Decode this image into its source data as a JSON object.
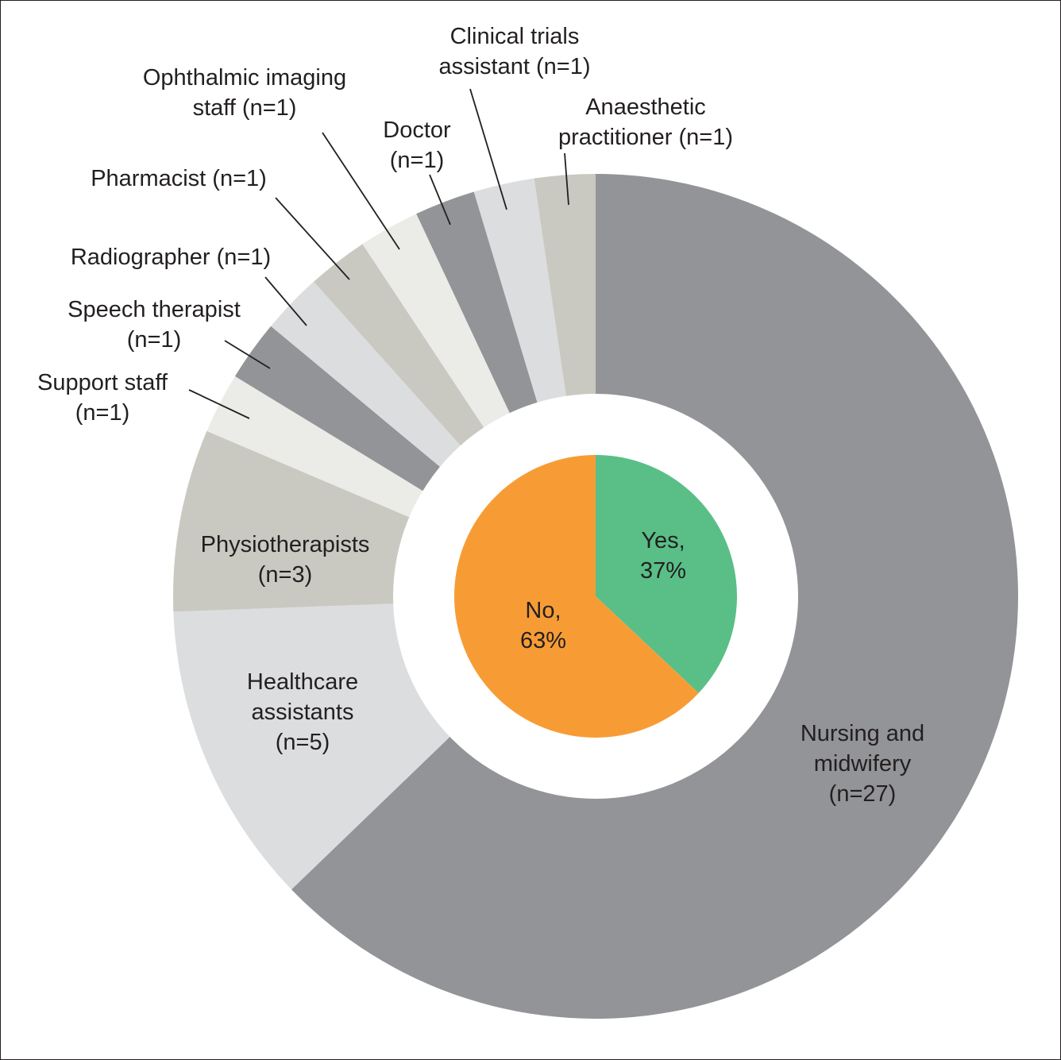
{
  "chart_data": [
    {
      "type": "pie",
      "variant": "donut",
      "categories": [
        "Nursing and midwifery",
        "Healthcare assistants",
        "Physiotherapists",
        "Support staff",
        "Speech therapist",
        "Radiographer",
        "Pharmacist",
        "Ophthalmic imaging staff",
        "Doctor",
        "Clinical trials assistant",
        "Anaesthetic practitioner"
      ],
      "values": [
        27,
        5,
        3,
        1,
        1,
        1,
        1,
        1,
        1,
        1,
        1
      ],
      "colors": [
        "#939497",
        "#dcdddf",
        "#cac9c1",
        "#ebebe7",
        "#939497",
        "#dcdddf",
        "#cac9c1",
        "#ebebe7",
        "#939497",
        "#dcdddf",
        "#cac9c1"
      ],
      "labels": [
        {
          "lines": [
            {
              "t": "Nursing and"
            },
            {
              "t": "midwifery"
            },
            {
              "t": "(n=27)"
            }
          ],
          "color": "#ffffff"
        },
        {
          "lines": [
            {
              "t": "Healthcare"
            },
            {
              "t": "assistants"
            },
            {
              "t": "(n=5)"
            }
          ],
          "color": "#231f20"
        },
        {
          "lines": [
            {
              "t": "Physiotherapists"
            },
            {
              "t": "(n=3)"
            }
          ],
          "color": "#231f20"
        },
        {
          "lines": [
            {
              "t": "Support staff"
            },
            {
              "t": "(n=1)"
            }
          ],
          "color": "#231f20"
        },
        {
          "lines": [
            {
              "t": "Speech therapist"
            },
            {
              "t": "(n=1)"
            }
          ],
          "color": "#231f20"
        },
        {
          "lines": [
            {
              "t": "Radiographer (n=1)"
            }
          ],
          "color": "#231f20"
        },
        {
          "lines": [
            {
              "t": "Pharmacist (n=1)"
            }
          ],
          "color": "#231f20"
        },
        {
          "lines": [
            {
              "t": "Ophthalmic imaging"
            },
            {
              "t": "staff (n=1)"
            }
          ],
          "color": "#231f20"
        },
        {
          "lines": [
            {
              "t": "Doctor"
            },
            {
              "t": "(n=1)"
            }
          ],
          "color": "#231f20"
        },
        {
          "lines": [
            {
              "t": "Clinical trials"
            },
            {
              "t": "assistant (n=1)"
            }
          ],
          "color": "#231f20"
        },
        {
          "lines": [
            {
              "t": "Anaesthetic"
            },
            {
              "t": "practitioner (n=1)"
            }
          ],
          "color": "#231f20"
        }
      ]
    },
    {
      "type": "pie",
      "categories": [
        "Yes",
        "No"
      ],
      "values": [
        37,
        63
      ],
      "colors": [
        "#59bf87",
        "#f79c35"
      ],
      "labels": [
        {
          "lines": [
            {
              "t": "Yes,"
            },
            {
              "t": "37%"
            }
          ],
          "color": "#231f20"
        },
        {
          "lines": [
            {
              "t": "No,"
            },
            {
              "t": "63%"
            }
          ],
          "color": "#231f20"
        }
      ]
    }
  ]
}
